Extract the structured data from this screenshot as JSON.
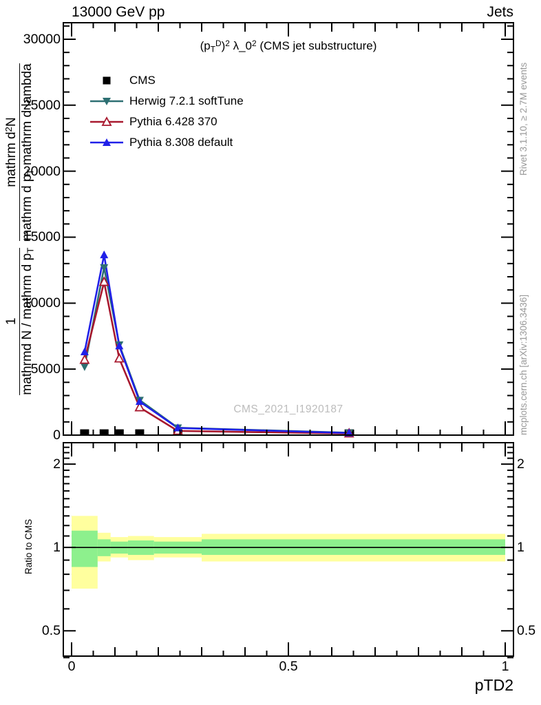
{
  "header": {
    "beam": "13000 GeV pp",
    "category": "Jets"
  },
  "plot_title": {
    "open": "(p",
    "p_sub": "T",
    "p_sup": "D",
    "close": ")",
    "close_sup": "2",
    "lambda": " λ_0",
    "lambda_sup": "2",
    "rest": " (CMS jet substructure)"
  },
  "watermark": "CMS_2021_I1920187",
  "side_notes": {
    "rivet": "Rivet 3.1.10, ≥ 2.7M events",
    "mcplots": "mcplots.cern.ch [arXiv:1306.3436]"
  },
  "y_axis_title": {
    "f1_num": "1",
    "f1_den": "mathrmd N / mathrm d p",
    "f1_den_sub": "T",
    "f2_num_a": "mathrm d",
    "f2_num_sup": "2",
    "f2_num_b": "N",
    "f2_den_a": "mathrm d p",
    "f2_den_sub": "T",
    "f2_den_b": " mathrm d lambda"
  },
  "ratio_axis_label": "Ratio to CMS",
  "x_axis": {
    "title": "pTD2",
    "tick_labels": [
      {
        "v": 0,
        "label": "0"
      },
      {
        "v": 0.5,
        "label": "0.5"
      },
      {
        "v": 1,
        "label": "1"
      }
    ]
  },
  "main_y_axis": {
    "tick_labels": [
      {
        "v": 0,
        "label": "0"
      },
      {
        "v": 5000,
        "label": "5000"
      },
      {
        "v": 10000,
        "label": "10000"
      },
      {
        "v": 15000,
        "label": "15000"
      },
      {
        "v": 20000,
        "label": "20000"
      },
      {
        "v": 25000,
        "label": "25000"
      },
      {
        "v": 30000,
        "label": "30000"
      }
    ]
  },
  "ratio_y_axis": {
    "tick_labels": [
      {
        "v": 0.5,
        "label": "0.5"
      },
      {
        "v": 1,
        "label": "1"
      },
      {
        "v": 2,
        "label": "2"
      }
    ]
  },
  "colors": {
    "cms": "#000000",
    "herwig": "#2d6f72",
    "pythia6": "#a8182e",
    "pythia8": "#2020e8",
    "band_yellow": "#ffff9e",
    "band_green": "#8df08d",
    "frame": "#000000",
    "gray_text": "#999999",
    "watermark": "#bcbcbc"
  },
  "chart_data": {
    "type": "line",
    "title": "(p_T^D)^2 λ_0^2 (CMS jet substructure)",
    "xlabel": "pTD2",
    "ylabel": "1/(dN/dp_T) d^2N/(dp_T dlambda)",
    "xlim": [
      -0.019,
      1.019
    ],
    "x": [
      0.03,
      0.075,
      0.11,
      0.157,
      0.245,
      0.64
    ],
    "main_panel": {
      "ylim": [
        0,
        31250
      ],
      "grid": false,
      "y_major_step": 5000,
      "y_minor_step": 1000,
      "series": [
        {
          "name": "CMS",
          "marker": "square",
          "color_key": "cms",
          "line": false,
          "values": [
            100,
            100,
            100,
            100,
            100,
            100
          ]
        },
        {
          "name": "Herwig 7.2.1 softTune",
          "marker": "triangle-down",
          "color_key": "herwig",
          "line": true,
          "values": [
            5200,
            12700,
            6850,
            2650,
            560,
            180
          ]
        },
        {
          "name": "Pythia 6.428 370",
          "marker": "triangle-open-up",
          "color_key": "pythia6",
          "line": true,
          "values": [
            5700,
            11600,
            5800,
            2100,
            320,
            120
          ]
        },
        {
          "name": "Pythia 8.308 default",
          "marker": "triangle-up",
          "color_key": "pythia8",
          "line": true,
          "values": [
            6300,
            13650,
            6750,
            2540,
            540,
            160
          ]
        }
      ]
    },
    "ratio_panel": {
      "ylim": [
        0.405,
        2.39
      ],
      "log": true,
      "unity_line": 1,
      "bin_edges": [
        0,
        0.06,
        0.09,
        0.13,
        0.19,
        0.3,
        1.0
      ],
      "yellow_band": [
        [
          0.71,
          1.3
        ],
        [
          0.89,
          1.13
        ],
        [
          0.92,
          1.09
        ],
        [
          0.9,
          1.1
        ],
        [
          0.92,
          1.09
        ],
        [
          0.89,
          1.12
        ]
      ],
      "green_band": [
        [
          0.85,
          1.15
        ],
        [
          0.93,
          1.07
        ],
        [
          0.95,
          1.05
        ],
        [
          0.94,
          1.06
        ],
        [
          0.95,
          1.05
        ],
        [
          0.94,
          1.07
        ]
      ],
      "minor_ticks": [
        0.4,
        0.6,
        0.7,
        0.8,
        0.9,
        1.1,
        1.2,
        1.3,
        1.4,
        1.5,
        1.6,
        1.7,
        1.8,
        1.9,
        2.1,
        2.2,
        2.3
      ]
    },
    "x_ticks": {
      "major": [
        0,
        0.5,
        1
      ],
      "medium_step": 0.1,
      "minor_step": 0.05
    }
  }
}
